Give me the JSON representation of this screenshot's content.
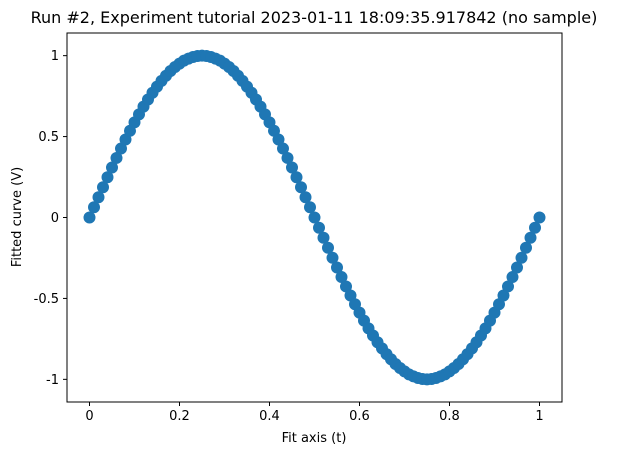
{
  "chart_data": {
    "type": "scatter",
    "title": "Run #2, Experiment tutorial 2023-01-11 18:09:35.917842 (no sample)",
    "xlabel": "Fit axis (t)",
    "ylabel": "Fitted curve (V)",
    "xlim": [
      -0.05,
      1.05
    ],
    "ylim": [
      -1.14,
      1.14
    ],
    "xticks": [
      0,
      0.2,
      0.4,
      0.6,
      0.8,
      1
    ],
    "xtick_labels": [
      "0",
      "0.2",
      "0.4",
      "0.6",
      "0.8",
      "1"
    ],
    "yticks": [
      -1,
      -0.5,
      0,
      0.5,
      1
    ],
    "ytick_labels": [
      "-1",
      "-0.5",
      "0",
      "0.5",
      "1"
    ],
    "grid": false,
    "series": [
      {
        "color": "#1f77b4",
        "x": [
          0,
          0.01,
          0.02,
          0.03,
          0.04,
          0.05,
          0.06,
          0.07,
          0.08,
          0.09,
          0.1,
          0.11,
          0.12,
          0.13,
          0.14,
          0.15,
          0.16,
          0.17,
          0.18,
          0.19,
          0.2,
          0.21,
          0.22,
          0.23,
          0.24,
          0.25,
          0.26,
          0.27,
          0.28,
          0.29,
          0.3,
          0.31,
          0.32,
          0.33,
          0.34,
          0.35,
          0.36,
          0.37,
          0.38,
          0.39,
          0.4,
          0.41,
          0.42,
          0.43,
          0.44,
          0.45,
          0.46,
          0.47,
          0.48,
          0.49,
          0.5,
          0.51,
          0.52,
          0.53,
          0.54,
          0.55,
          0.56,
          0.57,
          0.58,
          0.59,
          0.6,
          0.61,
          0.62,
          0.63,
          0.64,
          0.65,
          0.66,
          0.67,
          0.68,
          0.69,
          0.7,
          0.71,
          0.72,
          0.73,
          0.74,
          0.75,
          0.76,
          0.77,
          0.78,
          0.79,
          0.8,
          0.81,
          0.82,
          0.83,
          0.84,
          0.85,
          0.86,
          0.87,
          0.88,
          0.89,
          0.9,
          0.91,
          0.92,
          0.93,
          0.94,
          0.95,
          0.96,
          0.97,
          0.98,
          0.99,
          1
        ],
        "y": [
          0,
          0.063,
          0.125,
          0.187,
          0.249,
          0.309,
          0.368,
          0.426,
          0.482,
          0.536,
          0.588,
          0.637,
          0.685,
          0.729,
          0.771,
          0.809,
          0.844,
          0.876,
          0.905,
          0.93,
          0.951,
          0.969,
          0.982,
          0.992,
          0.998,
          1,
          0.998,
          0.992,
          0.982,
          0.969,
          0.951,
          0.93,
          0.905,
          0.876,
          0.844,
          0.809,
          0.771,
          0.729,
          0.685,
          0.637,
          0.588,
          0.536,
          0.482,
          0.426,
          0.368,
          0.309,
          0.249,
          0.187,
          0.125,
          0.063,
          0,
          -0.063,
          -0.125,
          -0.187,
          -0.249,
          -0.309,
          -0.368,
          -0.426,
          -0.482,
          -0.536,
          -0.588,
          -0.637,
          -0.685,
          -0.729,
          -0.771,
          -0.809,
          -0.844,
          -0.876,
          -0.905,
          -0.93,
          -0.951,
          -0.969,
          -0.982,
          -0.992,
          -0.998,
          -1,
          -0.998,
          -0.992,
          -0.982,
          -0.969,
          -0.951,
          -0.93,
          -0.905,
          -0.876,
          -0.844,
          -0.809,
          -0.771,
          -0.729,
          -0.685,
          -0.637,
          -0.588,
          -0.536,
          -0.482,
          -0.426,
          -0.368,
          -0.309,
          -0.249,
          -0.187,
          -0.125,
          -0.063,
          0
        ]
      }
    ]
  }
}
